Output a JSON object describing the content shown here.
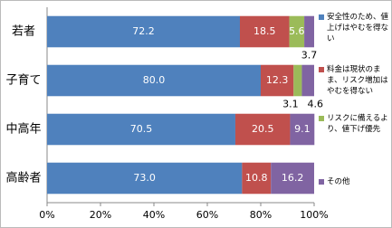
{
  "chart_data": {
    "type": "stacked-bar-horizontal",
    "categories": [
      "若者",
      "子育て",
      "中高年",
      "高齢者"
    ],
    "series": [
      {
        "name": "安全性のため、値上げはやむを得ない",
        "color": "#4f81bd",
        "values": [
          72.2,
          80.0,
          70.5,
          73.0
        ],
        "value_labels": [
          "72.2",
          "80.0",
          "70.5",
          "73.0"
        ]
      },
      {
        "name": "料金は現状のまま、リスク増加はやむを得ない",
        "color": "#c0504d",
        "values": [
          18.5,
          12.3,
          20.5,
          10.8
        ],
        "value_labels": [
          "18.5",
          "12.3",
          "20.5",
          "10.8"
        ]
      },
      {
        "name": "リスクに備えるより、値下げ優先",
        "color": "#9bbb59",
        "values": [
          5.6,
          3.1,
          null,
          null
        ],
        "value_labels": [
          "5.6",
          "3.1",
          null,
          null
        ]
      },
      {
        "name": "その他",
        "color": "#8064a2",
        "values": [
          3.7,
          4.6,
          9.1,
          16.2
        ],
        "value_labels": [
          "3.7",
          "4.6",
          "9.1",
          "16.2"
        ]
      }
    ],
    "xlim": [
      0,
      100
    ],
    "xticks": [
      {
        "value": 0,
        "label": "0%"
      },
      {
        "value": 20,
        "label": "20%"
      },
      {
        "value": 40,
        "label": "40%"
      },
      {
        "value": 60,
        "label": "60%"
      },
      {
        "value": 80,
        "label": "80%"
      },
      {
        "value": 100,
        "label": "100%"
      }
    ]
  }
}
